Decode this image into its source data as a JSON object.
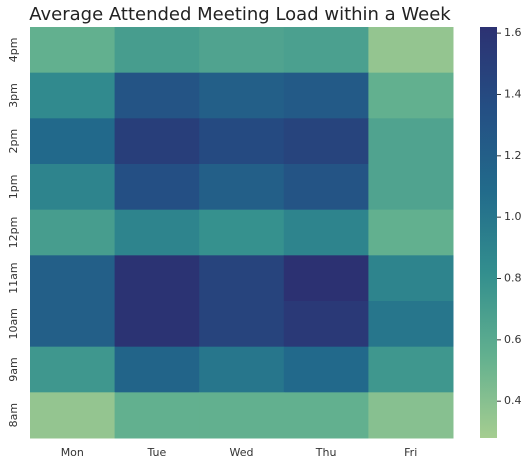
{
  "chart_data": {
    "type": "heatmap",
    "title": "Average Attended Meeting Load within a Week",
    "x_categories": [
      "Mon",
      "Tue",
      "Wed",
      "Thu",
      "Fri"
    ],
    "y_categories": [
      "4pm",
      "3pm",
      "2pm",
      "1pm",
      "12pm",
      "11am",
      "10am",
      "9am",
      "8am"
    ],
    "values": [
      [
        0.55,
        0.7,
        0.65,
        0.68,
        0.35
      ],
      [
        0.85,
        1.3,
        1.2,
        1.25,
        0.55
      ],
      [
        1.1,
        1.5,
        1.4,
        1.45,
        0.65
      ],
      [
        0.9,
        1.35,
        1.2,
        1.3,
        0.65
      ],
      [
        0.7,
        0.9,
        0.8,
        0.9,
        0.55
      ],
      [
        1.2,
        1.6,
        1.45,
        1.62,
        0.9
      ],
      [
        1.2,
        1.6,
        1.45,
        1.55,
        1.0
      ],
      [
        0.75,
        1.15,
        1.0,
        1.1,
        0.75
      ],
      [
        0.35,
        0.55,
        0.55,
        0.55,
        0.4
      ]
    ],
    "clim": [
      0.28,
      1.62
    ],
    "cticks": [
      0.4,
      0.6,
      0.8,
      {
        "value": 1,
        "label": "1.0"
      },
      1.2,
      1.4,
      1.6
    ],
    "colors": [
      "#a5cd90",
      "#62b08f",
      "#338f8e",
      "#226b8b",
      "#244f84",
      "#2c3172"
    ]
  }
}
